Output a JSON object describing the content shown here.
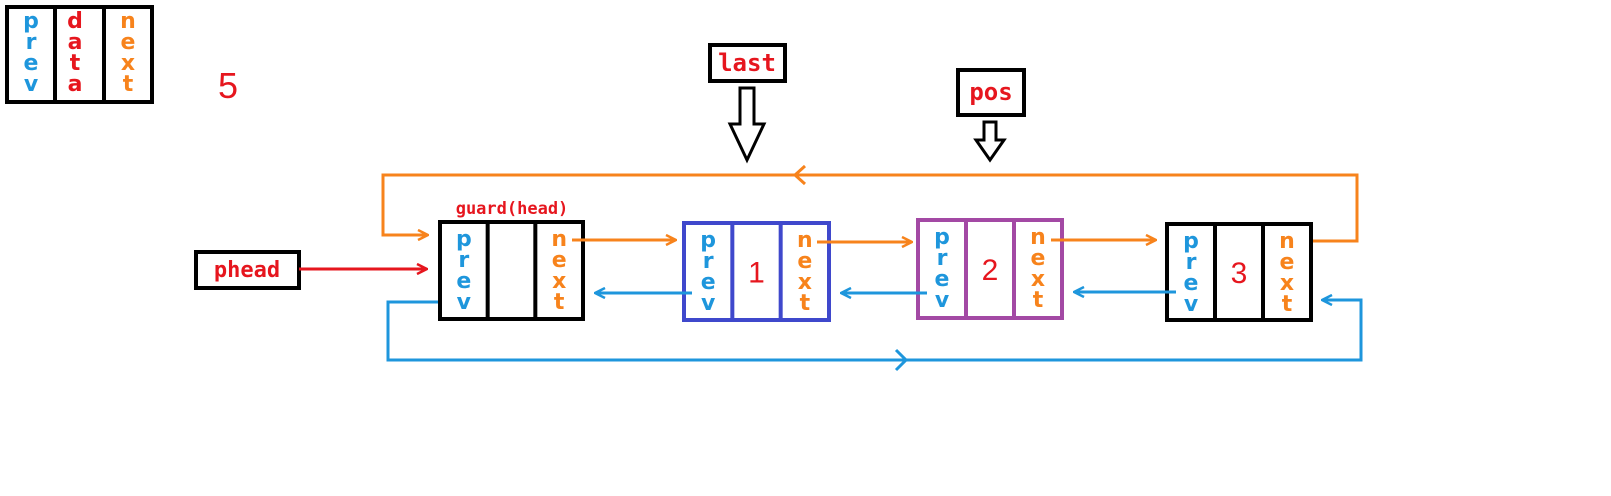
{
  "legend": {
    "prev_label": "prev",
    "data_label": "data",
    "next_label": "next"
  },
  "count_label": "5",
  "guard_label": "guard(head)",
  "pointers": {
    "phead": "phead",
    "last": "last",
    "pos": "pos"
  },
  "nodes": [
    {
      "prev": "prev",
      "data": "",
      "next": "next",
      "border": "#000000"
    },
    {
      "prev": "prev",
      "data": "1",
      "next": "next",
      "border": "#3f48cc"
    },
    {
      "prev": "prev",
      "data": "2",
      "next": "next",
      "border": "#a349a4"
    },
    {
      "prev": "prev",
      "data": "3",
      "next": "next",
      "border": "#000000"
    }
  ],
  "colors": {
    "prev": "#1e96dc",
    "data": "#e6161e",
    "next": "#f7831c",
    "outline": "#000000"
  }
}
